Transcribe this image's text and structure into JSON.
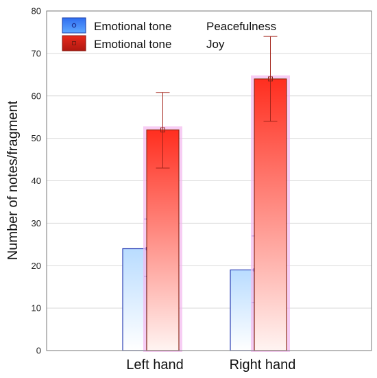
{
  "chart_data": {
    "type": "bar",
    "title": "",
    "xlabel": "",
    "ylabel": "Number of notes/fragment",
    "categories": [
      "Left hand",
      "Right hand"
    ],
    "ylim": [
      0,
      80
    ],
    "yticks": [
      0,
      10,
      20,
      30,
      40,
      50,
      60,
      70,
      80
    ],
    "grid": true,
    "legend_position": "top-left",
    "series": [
      {
        "name": "Emotional tone",
        "level": "Peacefulness",
        "color": "#3b6fe0",
        "values": [
          24,
          19
        ],
        "error_low": [
          17.5,
          11.3
        ],
        "error_high": [
          31,
          27
        ]
      },
      {
        "name": "Emotional tone",
        "level": "Joy",
        "color": "#e8261c",
        "values": [
          52,
          64
        ],
        "error_low": [
          43,
          54
        ],
        "error_high": [
          60.8,
          74
        ]
      }
    ]
  }
}
